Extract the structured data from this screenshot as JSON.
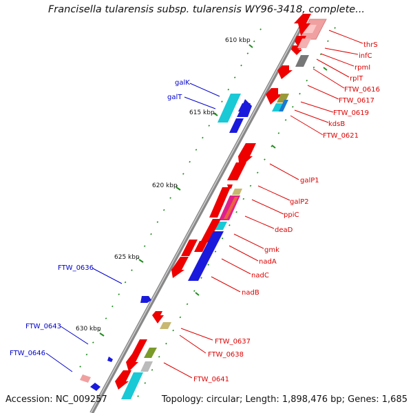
{
  "title": "Francisella tularensis subsp. tularensis WY96-3418, complete...",
  "footer": {
    "accession": "Accession: NC_009257",
    "stats": "Topology: circular; Length: 1,898,476 bp; Genes: 1,685"
  },
  "colors": {
    "axis": "#8a8a8a",
    "tick": "#1e8c1e",
    "gene_red": "#ee0000",
    "gene_blue": "#1a1add",
    "gene_cyan": "#19c9d6",
    "gene_pink": "#f0a0a0",
    "gene_gray": "#7a7a7a",
    "gene_olive": "#9a9a3a",
    "gene_tan": "#c8b870",
    "label_red": "#dd0000",
    "label_blue": "#0000cc",
    "kbp_text": "#111111"
  },
  "kbp_labels": [
    "610 kbp",
    "615 kbp",
    "620 kbp",
    "625 kbp",
    "630 kbp"
  ],
  "labels_right": [
    "thrS",
    "infC",
    "rpmI",
    "rplT",
    "FTW_0616",
    "FTW_0617",
    "FTW_0619",
    "kdsB",
    "FTW_0621",
    "galP1",
    "galP2",
    "ppiC",
    "deaD",
    "gmk",
    "nadA",
    "nadC",
    "nadB",
    "FTW_0637",
    "FTW_0638",
    "FTW_0641"
  ],
  "labels_left": [
    "galK",
    "galT",
    "FTW_0636",
    "FTW_0643",
    "FTW_0646"
  ]
}
